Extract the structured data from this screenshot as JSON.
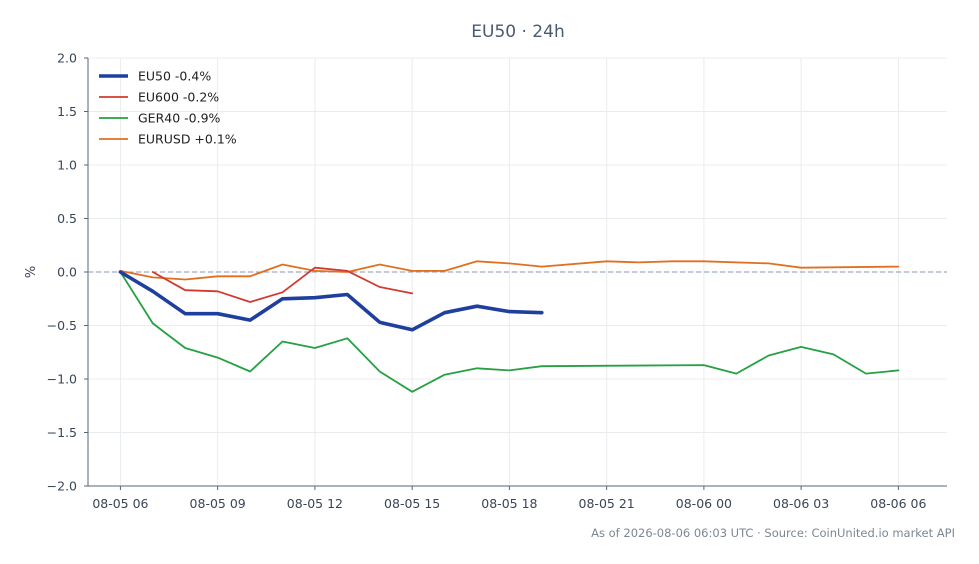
{
  "chart_data": {
    "type": "line",
    "title": "EU50 · 24h",
    "xlabel": "",
    "ylabel": "%",
    "ylim": [
      -2.0,
      2.0
    ],
    "y_ticks": [
      -2.0,
      -1.5,
      -1.0,
      -0.5,
      0.0,
      0.5,
      1.0,
      1.5,
      2.0
    ],
    "y_tick_labels": [
      "−2.0",
      "−1.5",
      "−1.0",
      "−0.5",
      "0.0",
      "0.5",
      "1.0",
      "1.5",
      "2.0"
    ],
    "xlim": [
      "08-05 05:00",
      "08-06 07:30"
    ],
    "x_tick_labels": [
      "08-05 06",
      "08-05 09",
      "08-05 12",
      "08-05 15",
      "08-05 18",
      "08-05 21",
      "08-06 00",
      "08-06 03",
      "08-06 06"
    ],
    "x_tick_times": [
      "08-05 06:00",
      "08-05 09:00",
      "08-05 12:00",
      "08-05 15:00",
      "08-05 18:00",
      "08-05 21:00",
      "08-06 00:00",
      "08-06 03:00",
      "08-06 06:00"
    ],
    "grid": true,
    "reference_line": 0.0,
    "legend_position": "top-left",
    "series": [
      {
        "name": "EU50 -0.4%",
        "color": "#1f3f9e",
        "x": [
          "08-05 06:00",
          "08-05 07:00",
          "08-05 08:00",
          "08-05 09:00",
          "08-05 10:00",
          "08-05 11:00",
          "08-05 12:00",
          "08-05 13:00",
          "08-05 14:00",
          "08-05 15:00",
          "08-05 16:00",
          "08-05 17:00",
          "08-05 18:00",
          "08-05 19:00"
        ],
        "values": [
          0.0,
          -0.18,
          -0.39,
          -0.39,
          -0.45,
          -0.25,
          -0.24,
          -0.21,
          -0.47,
          -0.54,
          -0.38,
          -0.32,
          -0.37,
          -0.38
        ]
      },
      {
        "name": "EU600 -0.2%",
        "color": "#d23a2e",
        "x": [
          "08-05 07:00",
          "08-05 08:00",
          "08-05 09:00",
          "08-05 10:00",
          "08-05 11:00",
          "08-05 12:00",
          "08-05 13:00",
          "08-05 14:00",
          "08-05 15:00"
        ],
        "values": [
          0.0,
          -0.17,
          -0.18,
          -0.28,
          -0.19,
          0.04,
          0.01,
          -0.14,
          -0.2
        ]
      },
      {
        "name": "GER40 -0.9%",
        "color": "#25a043",
        "x": [
          "08-05 06:00",
          "08-05 07:00",
          "08-05 08:00",
          "08-05 09:00",
          "08-05 10:00",
          "08-05 11:00",
          "08-05 12:00",
          "08-05 13:00",
          "08-05 14:00",
          "08-05 15:00",
          "08-05 16:00",
          "08-05 17:00",
          "08-05 18:00",
          "08-05 19:00",
          "08-06 00:00",
          "08-06 01:00",
          "08-06 02:00",
          "08-06 03:00",
          "08-06 04:00",
          "08-06 05:00",
          "08-06 06:00"
        ],
        "values": [
          0.0,
          -0.48,
          -0.71,
          -0.8,
          -0.93,
          -0.65,
          -0.71,
          -0.62,
          -0.93,
          -1.12,
          -0.96,
          -0.9,
          -0.92,
          -0.88,
          -0.87,
          -0.95,
          -0.78,
          -0.7,
          -0.77,
          -0.95,
          -0.92
        ]
      },
      {
        "name": "EURUSD +0.1%",
        "color": "#e07020",
        "x": [
          "08-05 06:00",
          "08-05 07:00",
          "08-05 08:00",
          "08-05 09:00",
          "08-05 10:00",
          "08-05 11:00",
          "08-05 12:00",
          "08-05 13:00",
          "08-05 14:00",
          "08-05 15:00",
          "08-05 16:00",
          "08-05 17:00",
          "08-05 18:00",
          "08-05 19:00",
          "08-05 21:00",
          "08-05 22:00",
          "08-05 23:00",
          "08-06 00:00",
          "08-06 02:00",
          "08-06 03:00",
          "08-06 06:00"
        ],
        "values": [
          0.01,
          -0.05,
          -0.07,
          -0.04,
          -0.04,
          0.07,
          0.01,
          0.0,
          0.07,
          0.01,
          0.01,
          0.1,
          0.08,
          0.05,
          0.1,
          0.09,
          0.1,
          0.1,
          0.08,
          0.04,
          0.05
        ]
      }
    ]
  },
  "footer": {
    "text": "As of 2026-08-06 06:03 UTC · Source: CoinUnited.io market API"
  }
}
